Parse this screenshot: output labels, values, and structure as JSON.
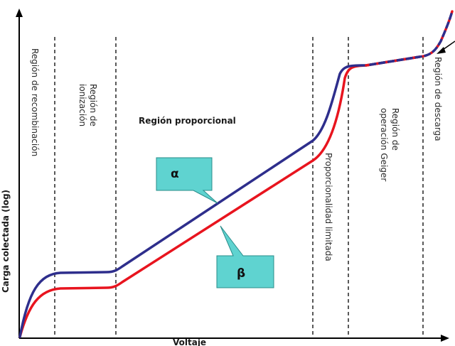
{
  "axes": {
    "y_label": "Carga colectada (log)",
    "x_label": "Voltaje"
  },
  "regions": {
    "recombinacion": "Región de recombinación",
    "ionizacion_line1": "Región de",
    "ionizacion_line2": "ionización",
    "proporcional": "Región proporcional",
    "limitada": "Proporcionalidad limitada",
    "geiger_line1": "Región de",
    "geiger_line2": "operación Geiger",
    "descarga": "Región de descarga"
  },
  "callouts": {
    "alpha": "α",
    "beta": "β"
  },
  "curves": [
    {
      "name": "α",
      "color": "#2e2e8c"
    },
    {
      "name": "β",
      "color": "#e8141e"
    }
  ],
  "colors": {
    "callout_fill": "#5fd3d0",
    "callout_stroke": "#2a8c8a",
    "axis": "#000000",
    "divider": "#000000"
  }
}
